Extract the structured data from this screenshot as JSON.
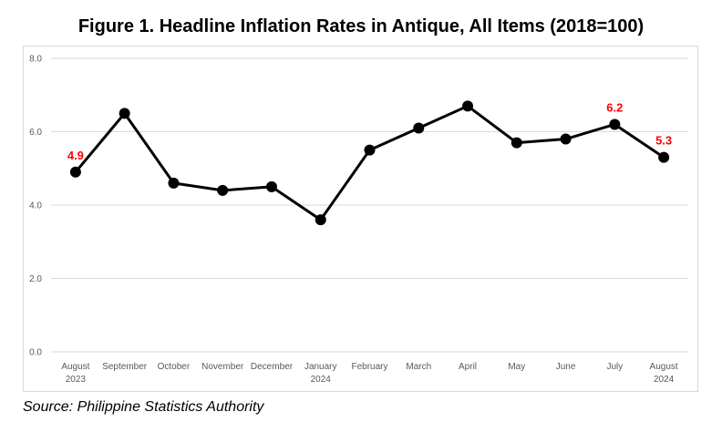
{
  "header": {
    "title": "Figure 1. Headline Inflation Rates in Antique, All Items (2018=100)"
  },
  "footer": {
    "source": "Source: Philippine Statistics Authority"
  },
  "colors": {
    "line": "#000000",
    "marker": "#000000",
    "label": "#ff0000",
    "grid": "#d9d9d9",
    "tick": "#595959"
  },
  "chart_data": {
    "type": "line",
    "title": "Figure 1. Headline Inflation Rates in Antique, All Items (2018=100)",
    "xlabel": "",
    "ylabel": "",
    "categories": [
      [
        "August",
        "2023"
      ],
      [
        "September"
      ],
      [
        "October"
      ],
      [
        "November"
      ],
      [
        "December"
      ],
      [
        "January",
        "2024"
      ],
      [
        "February"
      ],
      [
        "March"
      ],
      [
        "April"
      ],
      [
        "May"
      ],
      [
        "June"
      ],
      [
        "July"
      ],
      [
        "August",
        "2024"
      ]
    ],
    "values": [
      4.9,
      6.5,
      4.6,
      4.4,
      4.5,
      3.6,
      5.5,
      6.1,
      6.7,
      5.7,
      5.8,
      6.2,
      5.3
    ],
    "data_labels": [
      {
        "index": 0,
        "text": "4.9"
      },
      {
        "index": 11,
        "text": "6.2"
      },
      {
        "index": 12,
        "text": "5.3"
      }
    ],
    "ylim": [
      0,
      8
    ],
    "yticks": [
      "0.0",
      "2.0",
      "4.0",
      "6.0",
      "8.0"
    ],
    "grid": true,
    "legend": "none"
  }
}
